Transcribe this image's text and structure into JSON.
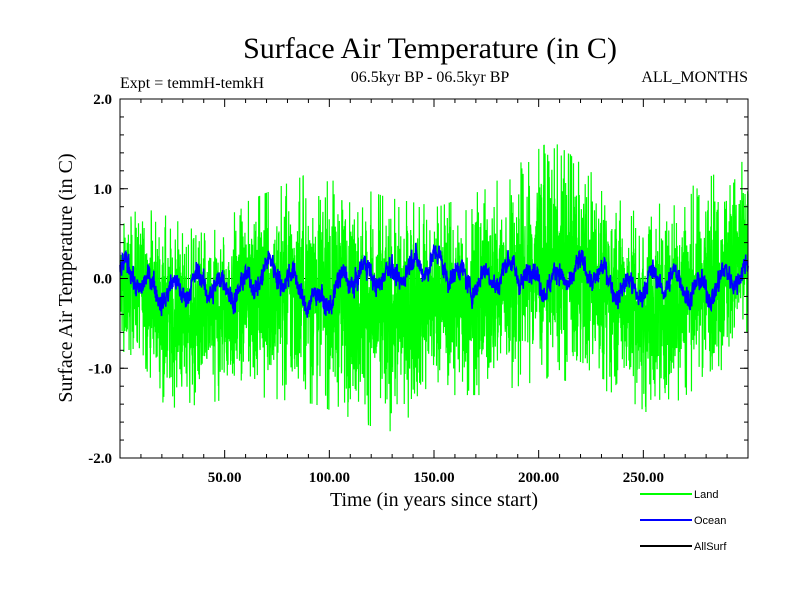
{
  "chart_data": {
    "type": "line",
    "title": "Surface Air Temperature (in C)",
    "subtitle_left": "Expt = temmH-temkH",
    "subtitle_center": "06.5kyr BP - 06.5kyr BP",
    "subtitle_right": "ALL_MONTHS",
    "xlabel": "Time (in years since start)",
    "ylabel": "Surface Air Temperature (in C)",
    "xlim": [
      0,
      300
    ],
    "ylim": [
      -2.0,
      2.0
    ],
    "x_ticks": [
      50,
      100,
      150,
      200,
      250
    ],
    "x_tick_labels": [
      "50.00",
      "100.00",
      "150.00",
      "200.00",
      "250.00"
    ],
    "y_ticks": [
      -2.0,
      -1.0,
      0.0,
      1.0,
      2.0
    ],
    "y_tick_labels": [
      "-2.0",
      "-1.0",
      "0.0",
      "1.0",
      "2.0"
    ],
    "reference_line_y": 0.0,
    "n_samples": 3600,
    "series": [
      {
        "name": "Land",
        "color": "#00ff00",
        "noise_amplitude": 0.5,
        "values_by_year": [
          {
            "x": 0,
            "low": -0.8,
            "high": 0.6
          },
          {
            "x": 10,
            "low": -0.9,
            "high": 0.8
          },
          {
            "x": 22,
            "low": -1.45,
            "high": 0.7
          },
          {
            "x": 40,
            "low": -1.4,
            "high": 0.5
          },
          {
            "x": 60,
            "low": -1.3,
            "high": 0.85
          },
          {
            "x": 93,
            "low": -1.4,
            "high": 1.2
          },
          {
            "x": 128,
            "low": -1.72,
            "high": 0.9
          },
          {
            "x": 152,
            "low": -1.3,
            "high": 0.8
          },
          {
            "x": 175,
            "low": -1.3,
            "high": 1.0
          },
          {
            "x": 206,
            "low": -1.1,
            "high": 1.55
          },
          {
            "x": 240,
            "low": -1.3,
            "high": 0.9
          },
          {
            "x": 255,
            "low": -1.55,
            "high": 0.8
          },
          {
            "x": 295,
            "low": -0.9,
            "high": 1.3
          }
        ]
      },
      {
        "name": "Ocean",
        "color": "#0000ff",
        "noise_amplitude": 0.12,
        "values_by_year": [
          {
            "x": 0,
            "mean": 0.0
          },
          {
            "x": 40,
            "mean": -0.15
          },
          {
            "x": 70,
            "mean": 0.05
          },
          {
            "x": 95,
            "mean": -0.2
          },
          {
            "x": 135,
            "mean": 0.15
          },
          {
            "x": 180,
            "mean": 0.0
          },
          {
            "x": 210,
            "mean": 0.05
          },
          {
            "x": 260,
            "mean": -0.1
          },
          {
            "x": 300,
            "mean": 0.0
          }
        ]
      },
      {
        "name": "AllSurf",
        "color": "#000000",
        "noise_amplitude": 0,
        "values_by_year": []
      }
    ],
    "legend_placement": "bottom-right"
  }
}
